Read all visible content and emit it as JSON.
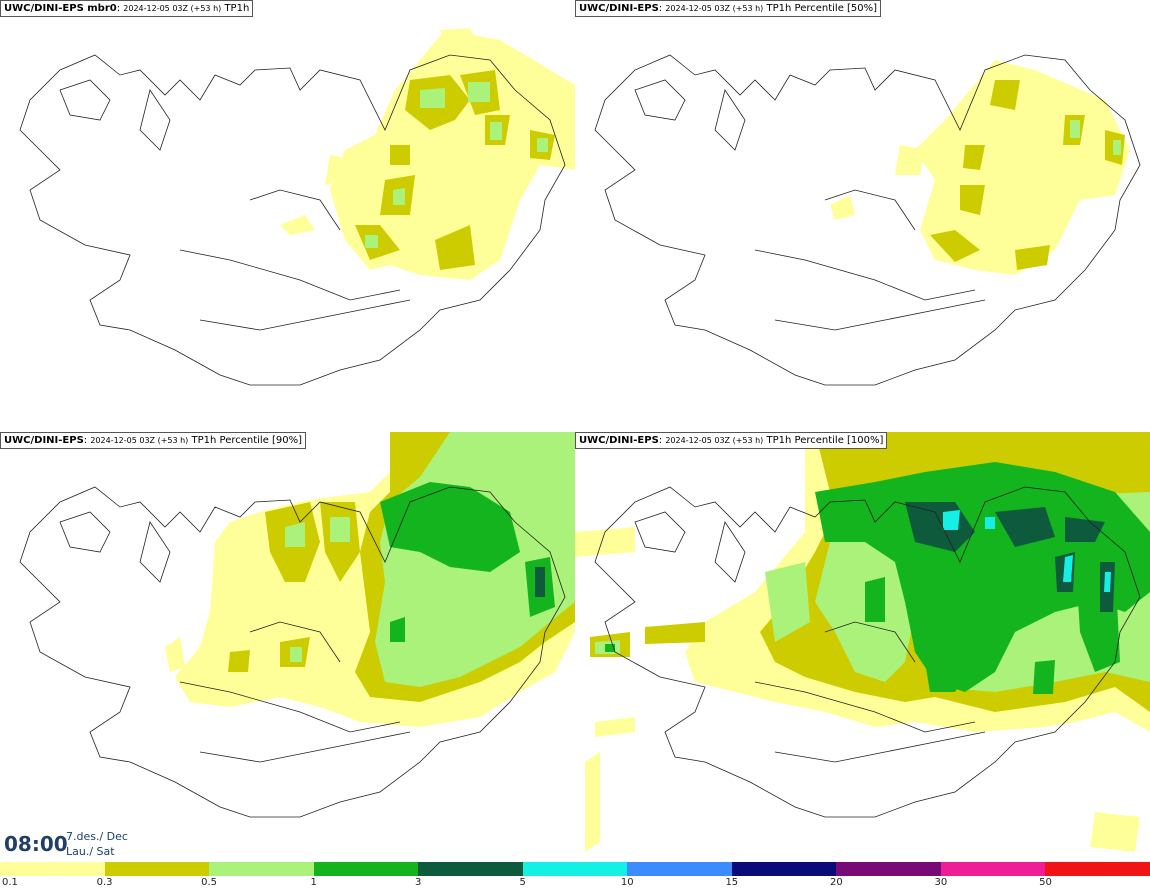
{
  "panels": [
    {
      "model": "UWC/DINI-EPS mbr0",
      "meta": "2024-12-05 03Z (+53 h)",
      "field": "TP1h"
    },
    {
      "model": "UWC/DINI-EPS",
      "meta": "2024-12-05 03Z (+53 h)",
      "field": "TP1h Percentile [50%]"
    },
    {
      "model": "UWC/DINI-EPS",
      "meta": "2024-12-05 03Z (+53 h)",
      "field": "TP1h Percentile [90%]"
    },
    {
      "model": "UWC/DINI-EPS",
      "meta": "2024-12-05 03Z (+53 h)",
      "field": "TP1h Percentile [100%]"
    }
  ],
  "valid_time": {
    "time": "08:00",
    "date_line1": "7.des./ Dec",
    "date_line2": "Lau./ Sat"
  },
  "legend": {
    "colors": [
      "#ffff99",
      "#cccc00",
      "#aaf27a",
      "#14b41e",
      "#0e5a3c",
      "#14f0e6",
      "#3c8cff",
      "#0a0a78",
      "#780a78",
      "#f01e96",
      "#f01414"
    ],
    "labels": [
      "0.1",
      "0.3",
      "0.5",
      "1",
      "3",
      "5",
      "10",
      "15",
      "20",
      "30",
      "50"
    ]
  }
}
